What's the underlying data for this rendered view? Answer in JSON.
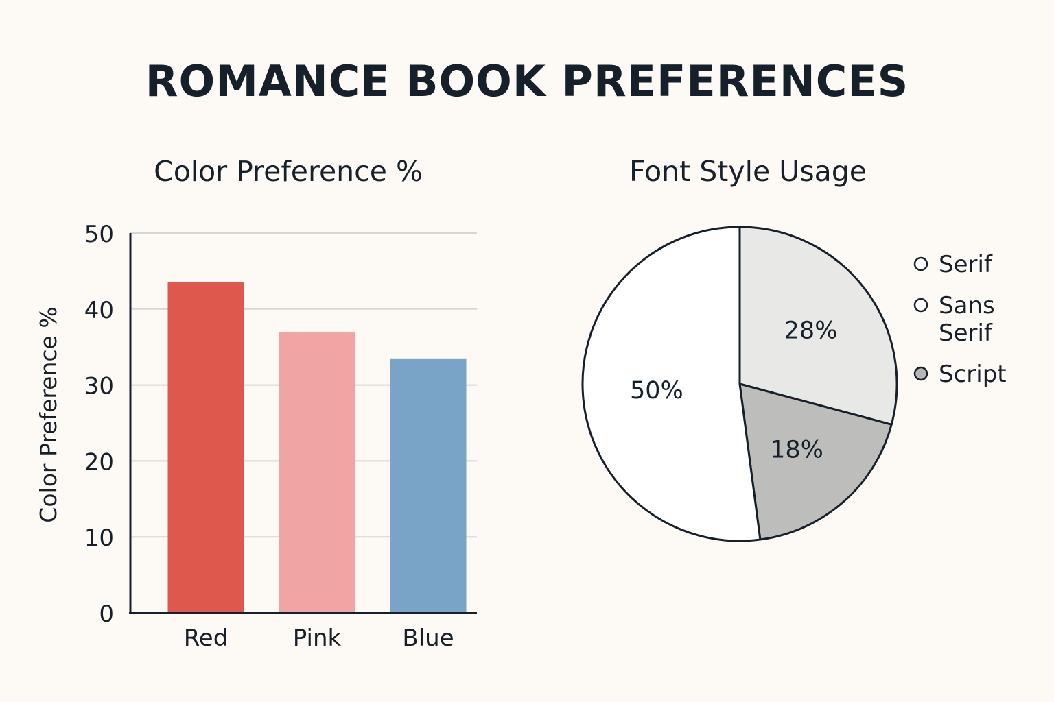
{
  "page": {
    "title": "ROMANCE BOOK PREFERENCES"
  },
  "chart_data": [
    {
      "type": "bar",
      "title": "Color Preference %",
      "xlabel": "",
      "ylabel": "Color Preference %",
      "categories": [
        "Red",
        "Pink",
        "Blue"
      ],
      "values": [
        43.5,
        37,
        33.5
      ],
      "colors": [
        "#de584d",
        "#f0a4a3",
        "#7aa4c7"
      ],
      "ylim": [
        0,
        50
      ],
      "yticks": [
        0,
        10,
        20,
        30,
        40,
        50
      ],
      "grid": true
    },
    {
      "type": "pie",
      "title": "Font Style Usage",
      "slices": [
        {
          "label": "Serif",
          "value": 28,
          "value_label": "28%",
          "color": "#e8e8e6"
        },
        {
          "label": "Sans Serif",
          "value": 18,
          "value_label": "18%",
          "color": "#bdbdbb"
        },
        {
          "label": "Script",
          "value": 50,
          "value_label": "50%",
          "color": "#ffffff"
        }
      ],
      "legend": {
        "position": "right",
        "entries": [
          {
            "label_lines": [
              "Serif"
            ],
            "marker_color": "#ffffff"
          },
          {
            "label_lines": [
              "Sans",
              "Serif"
            ],
            "marker_color": "#ffffff"
          },
          {
            "label_lines": [
              "Script"
            ],
            "marker_color": "#b6b6b4"
          }
        ]
      }
    }
  ]
}
